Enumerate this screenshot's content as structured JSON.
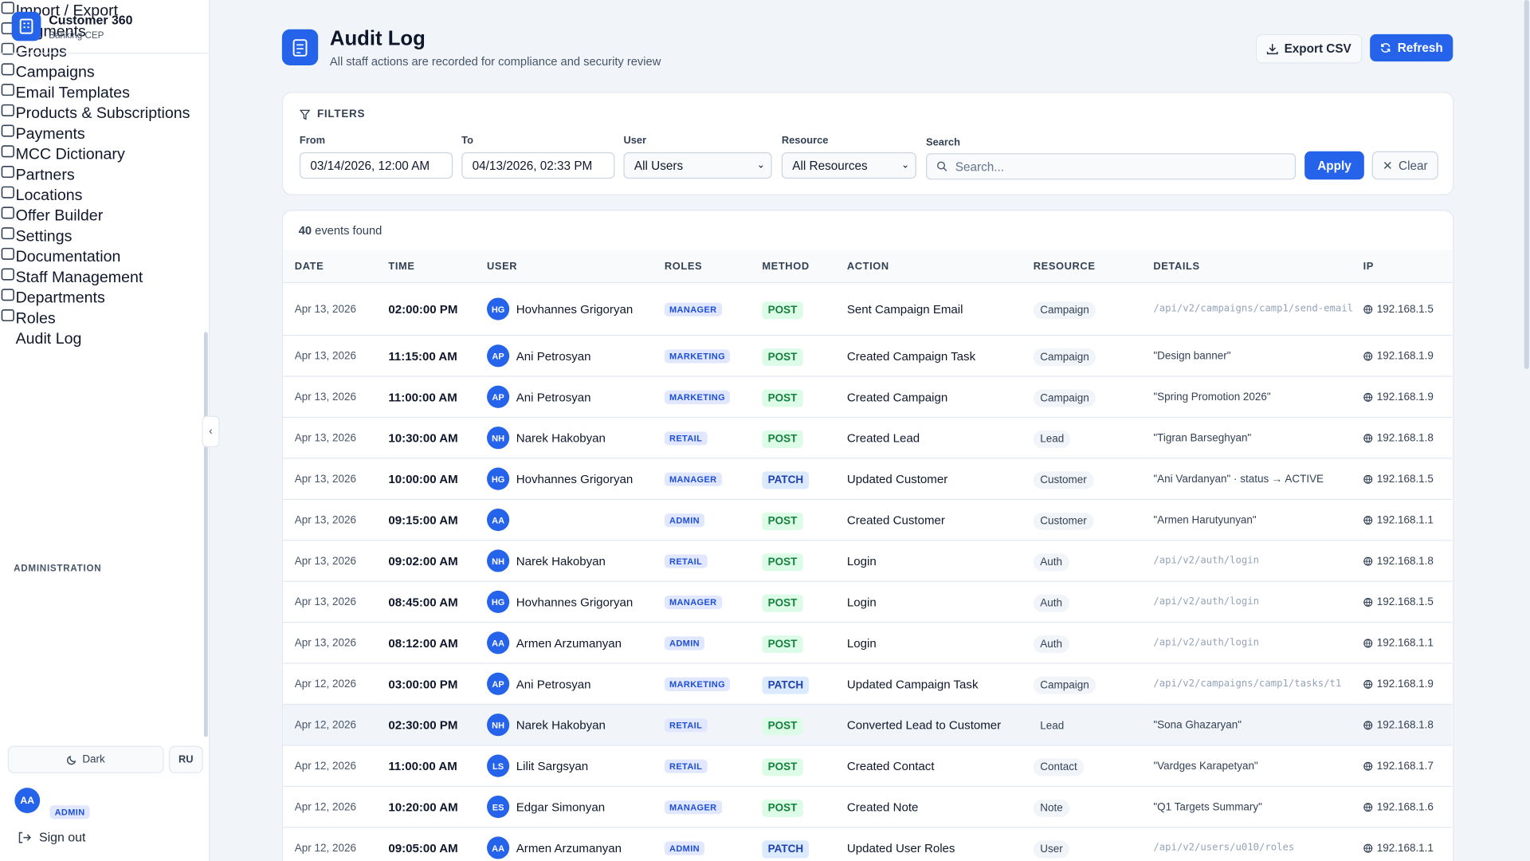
{
  "sidebar": {
    "brand": {
      "title": "Customer 360",
      "subtitle": "Banking CEP"
    },
    "nav": [
      {
        "label": "Import / Export"
      },
      {
        "label": "Segments"
      },
      {
        "label": "Groups"
      },
      {
        "label": "Campaigns"
      },
      {
        "label": "Email Templates"
      },
      {
        "label": "Products & Subscriptions"
      },
      {
        "label": "Payments"
      },
      {
        "label": "MCC Dictionary"
      },
      {
        "label": "Partners"
      },
      {
        "label": "Locations"
      },
      {
        "label": "Offer Builder"
      },
      {
        "label": "Settings"
      },
      {
        "label": "Documentation"
      }
    ],
    "admin": {
      "heading": "ADMINISTRATION",
      "items": [
        {
          "label": "Staff Management"
        },
        {
          "label": "Departments"
        },
        {
          "label": "Roles"
        },
        {
          "label": "Audit Log",
          "active": true
        }
      ]
    },
    "footer": {
      "theme": "Dark",
      "language": "RU",
      "user_initials": "AA",
      "user_role": "ADMIN",
      "sign_out": "Sign out"
    }
  },
  "header": {
    "title": "Audit Log",
    "subtitle": "All staff actions are recorded for compliance and security review",
    "export": "Export CSV",
    "refresh": "Refresh"
  },
  "filters": {
    "heading": "FILTERS",
    "from": {
      "label": "From",
      "value": "03/14/2026, 12:00 AM"
    },
    "to": {
      "label": "To",
      "value": "04/13/2026, 02:33 PM"
    },
    "user": {
      "label": "User",
      "value": "All Users"
    },
    "resource": {
      "label": "Resource",
      "value": "All Resources"
    },
    "search": {
      "label": "Search",
      "placeholder": "Search..."
    },
    "apply": "Apply",
    "clear": "Clear"
  },
  "results": {
    "count": 40,
    "count_text": "events found"
  },
  "table": {
    "columns": [
      "DATE",
      "TIME",
      "USER",
      "ROLES",
      "METHOD",
      "ACTION",
      "RESOURCE",
      "DETAILS",
      "IP"
    ],
    "rows": [
      [
        "Apr 13, 2026",
        "02:00:00 PM",
        "HG",
        "Hovhannes Grigoryan",
        "MANAGER",
        "POST",
        "Sent Campaign Email",
        "Campaign",
        "/api/v2/campaigns/camp1/send-email",
        "192.168.1.5"
      ],
      [
        "Apr 13, 2026",
        "11:15:00 AM",
        "AP",
        "Ani Petrosyan",
        "MARKETING",
        "POST",
        "Created Campaign Task",
        "Campaign",
        "\"Design banner\"",
        "192.168.1.9"
      ],
      [
        "Apr 13, 2026",
        "11:00:00 AM",
        "AP",
        "Ani Petrosyan",
        "MARKETING",
        "POST",
        "Created Campaign",
        "Campaign",
        "\"Spring Promotion 2026\"",
        "192.168.1.9"
      ],
      [
        "Apr 13, 2026",
        "10:30:00 AM",
        "NH",
        "Narek Hakobyan",
        "RETAIL",
        "POST",
        "Created Lead",
        "Lead",
        "\"Tigran Barseghyan\"",
        "192.168.1.8"
      ],
      [
        "Apr 13, 2026",
        "10:00:00 AM",
        "HG",
        "Hovhannes Grigoryan",
        "MANAGER",
        "PATCH",
        "Updated Customer",
        "Customer",
        "\"Ani Vardanyan\" · status → ACTIVE",
        "192.168.1.5"
      ],
      [
        "Apr 13, 2026",
        "09:15:00 AM",
        "AA",
        null,
        "ADMIN",
        "POST",
        "Created Customer",
        "Customer",
        "\"Armen Harutyunyan\"",
        "192.168.1.1"
      ],
      [
        "Apr 13, 2026",
        "09:02:00 AM",
        "NH",
        "Narek Hakobyan",
        "RETAIL",
        "POST",
        "Login",
        "Auth",
        "/api/v2/auth/login",
        "192.168.1.8"
      ],
      [
        "Apr 13, 2026",
        "08:45:00 AM",
        "HG",
        "Hovhannes Grigoryan",
        "MANAGER",
        "POST",
        "Login",
        "Auth",
        "/api/v2/auth/login",
        "192.168.1.5"
      ],
      [
        "Apr 13, 2026",
        "08:12:00 AM",
        "AA",
        "Armen Arzumanyan",
        "ADMIN",
        "POST",
        "Login",
        "Auth",
        "/api/v2/auth/login",
        "192.168.1.1"
      ],
      [
        "Apr 12, 2026",
        "03:00:00 PM",
        "AP",
        "Ani Petrosyan",
        "MARKETING",
        "PATCH",
        "Updated Campaign Task",
        "Campaign",
        "/api/v2/campaigns/camp1/tasks/t1",
        "192.168.1.9"
      ],
      [
        "Apr 12, 2026",
        "02:30:00 PM",
        "NH",
        "Narek Hakobyan",
        "RETAIL",
        "POST",
        "Converted Lead to Customer",
        "Lead",
        "\"Sona Ghazaryan\"",
        "192.168.1.8"
      ],
      [
        "Apr 12, 2026",
        "11:00:00 AM",
        "LS",
        "Lilit Sargsyan",
        "RETAIL",
        "POST",
        "Created Contact",
        "Contact",
        "\"Vardges Karapetyan\"",
        "192.168.1.7"
      ],
      [
        "Apr 12, 2026",
        "10:20:00 AM",
        "ES",
        "Edgar Simonyan",
        "MANAGER",
        "POST",
        "Created Note",
        "Note",
        "\"Q1 Targets Summary\"",
        "192.168.1.6"
      ],
      [
        "Apr 12, 2026",
        "09:05:00 AM",
        "AA",
        "Armen Arzumanyan",
        "ADMIN",
        "PATCH",
        "Updated User Roles",
        "User",
        "/api/v2/users/u010/roles",
        "192.168.1.1"
      ]
    ]
  }
}
